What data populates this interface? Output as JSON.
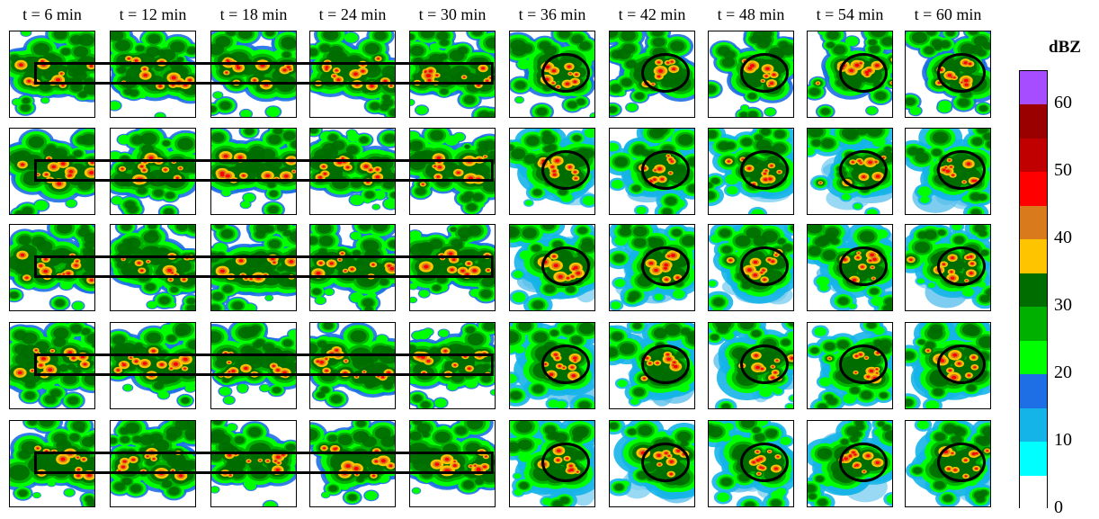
{
  "columns": [
    "t = 6 min",
    "t = 12 min",
    "t = 18 min",
    "t = 24 min",
    "t = 30 min",
    "t = 36 min",
    "t = 42 min",
    "t = 48 min",
    "t = 54 min",
    "t = 60 min"
  ],
  "rows": 5,
  "colorbar": {
    "unit": "dBZ",
    "ticks": [
      "60",
      "50",
      "40",
      "30",
      "20",
      "10",
      "0"
    ],
    "levels": [
      {
        "from": 0,
        "to": 5,
        "color": "#ffffff"
      },
      {
        "from": 5,
        "to": 10,
        "color": "#00ffff"
      },
      {
        "from": 10,
        "to": 15,
        "color": "#15b4e8"
      },
      {
        "from": 15,
        "to": 20,
        "color": "#1e6fe6"
      },
      {
        "from": 20,
        "to": 25,
        "color": "#00ff00"
      },
      {
        "from": 25,
        "to": 30,
        "color": "#00b000"
      },
      {
        "from": 30,
        "to": 35,
        "color": "#006d00"
      },
      {
        "from": 35,
        "to": 40,
        "color": "#ffc400"
      },
      {
        "from": 40,
        "to": 45,
        "color": "#d97b1d"
      },
      {
        "from": 45,
        "to": 50,
        "color": "#ff0000"
      },
      {
        "from": 50,
        "to": 55,
        "color": "#c00000"
      },
      {
        "from": 55,
        "to": 60,
        "color": "#9a0000"
      },
      {
        "from": 60,
        "to": 65,
        "color": "#a64dff"
      }
    ]
  }
}
